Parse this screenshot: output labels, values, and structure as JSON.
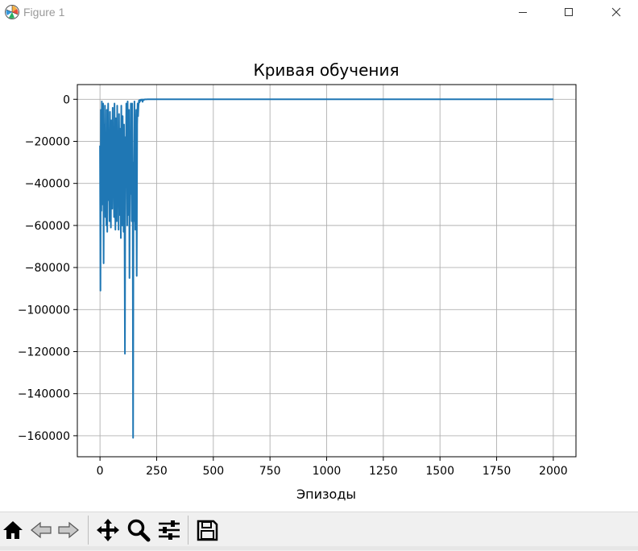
{
  "window": {
    "title": "Figure 1",
    "icon": "matplotlib-logo-icon"
  },
  "window_controls": {
    "minimize": "minimize-icon",
    "maximize": "maximize-icon",
    "close": "close-icon"
  },
  "toolbar": {
    "buttons": [
      "home-icon",
      "back-arrow-icon",
      "forward-arrow-icon",
      "pan-icon",
      "zoom-icon",
      "configure-subplots-icon",
      "save-icon"
    ]
  },
  "chart_data": {
    "type": "line",
    "title": "Кривая обучения",
    "xlabel": "Эпизоды",
    "ylabel": "",
    "xlim": [
      -100,
      2100
    ],
    "ylim": [
      -170000,
      7000
    ],
    "xticks": [
      0,
      250,
      500,
      750,
      1000,
      1250,
      1500,
      1750,
      2000
    ],
    "xtick_labels": [
      "0",
      "250",
      "500",
      "750",
      "1000",
      "1250",
      "1500",
      "1750",
      "2000"
    ],
    "yticks": [
      0,
      -20000,
      -40000,
      -60000,
      -80000,
      -100000,
      -120000,
      -140000,
      -160000
    ],
    "ytick_labels": [
      "0",
      "−20000",
      "−40000",
      "−60000",
      "−80000",
      "−100000",
      "−120000",
      "−140000",
      "−160000"
    ],
    "grid": true,
    "color": "#1f77b4",
    "series": [
      {
        "x": [
          0,
          2,
          4,
          6,
          8,
          10,
          12,
          14,
          16,
          18,
          20,
          22,
          24,
          26,
          28,
          30,
          32,
          34,
          36,
          38,
          40,
          42,
          44,
          46,
          48,
          50,
          52,
          54,
          56,
          58,
          60,
          62,
          64,
          66,
          68,
          70,
          72,
          74,
          76,
          78,
          80,
          82,
          84,
          86,
          88,
          90,
          92,
          94,
          96,
          98,
          100,
          102,
          104,
          106,
          108,
          110,
          112,
          114,
          116,
          118,
          120,
          122,
          124,
          126,
          128,
          130,
          132,
          134,
          136,
          138,
          140,
          142,
          144,
          146,
          148,
          150,
          152,
          154,
          156,
          158,
          160,
          162,
          164,
          166,
          168,
          170,
          172,
          174,
          176,
          178,
          180,
          182,
          184,
          186,
          188,
          190,
          192,
          194,
          196,
          198,
          200,
          205,
          210,
          215,
          220,
          230,
          240,
          250,
          255,
          260,
          265,
          270,
          275,
          280,
          290,
          300,
          400,
          600,
          800,
          1000,
          1250,
          1500,
          1750,
          2000
        ],
        "y": [
          -22000,
          -91000,
          -5000,
          -53000,
          -1000,
          -28000,
          -50000,
          -2000,
          -78000,
          -12000,
          -40000,
          -3000,
          -56000,
          -20000,
          -60000,
          -5000,
          -63000,
          -15000,
          -2000,
          -48000,
          -30000,
          -58000,
          -6000,
          -40000,
          -61000,
          -10000,
          -33000,
          -52000,
          -4000,
          -45000,
          -29000,
          -56000,
          -2000,
          -41000,
          -62000,
          -9000,
          -34000,
          -58000,
          -3000,
          -44000,
          -26000,
          -62000,
          -7000,
          -36000,
          -55000,
          -14000,
          -66000,
          -3000,
          -40000,
          -60000,
          -8000,
          -37000,
          -63000,
          -12000,
          -50000,
          -121000,
          -18000,
          -40000,
          -2000,
          -33000,
          -60000,
          -1000,
          -30000,
          -55000,
          -5000,
          -85000,
          -20000,
          -45000,
          -2000,
          -32000,
          -58000,
          -2000,
          -38000,
          -161000,
          -30000,
          -58000,
          -1000,
          -40000,
          -62000,
          -18000,
          -5000,
          -84000,
          -12000,
          -2000,
          -8000,
          -3000,
          -500,
          -1500,
          -300,
          -800,
          -200,
          -400,
          -100,
          -200,
          -1200,
          -100,
          -200,
          -300,
          -100,
          -50,
          -30,
          -20,
          -10,
          -10,
          -10,
          -10,
          -10,
          -10,
          -10,
          -10,
          -10,
          -10,
          -10,
          -10,
          -10,
          -10,
          -10,
          -10,
          -10,
          -10,
          -10,
          -10,
          -10,
          -10
        ]
      }
    ]
  }
}
